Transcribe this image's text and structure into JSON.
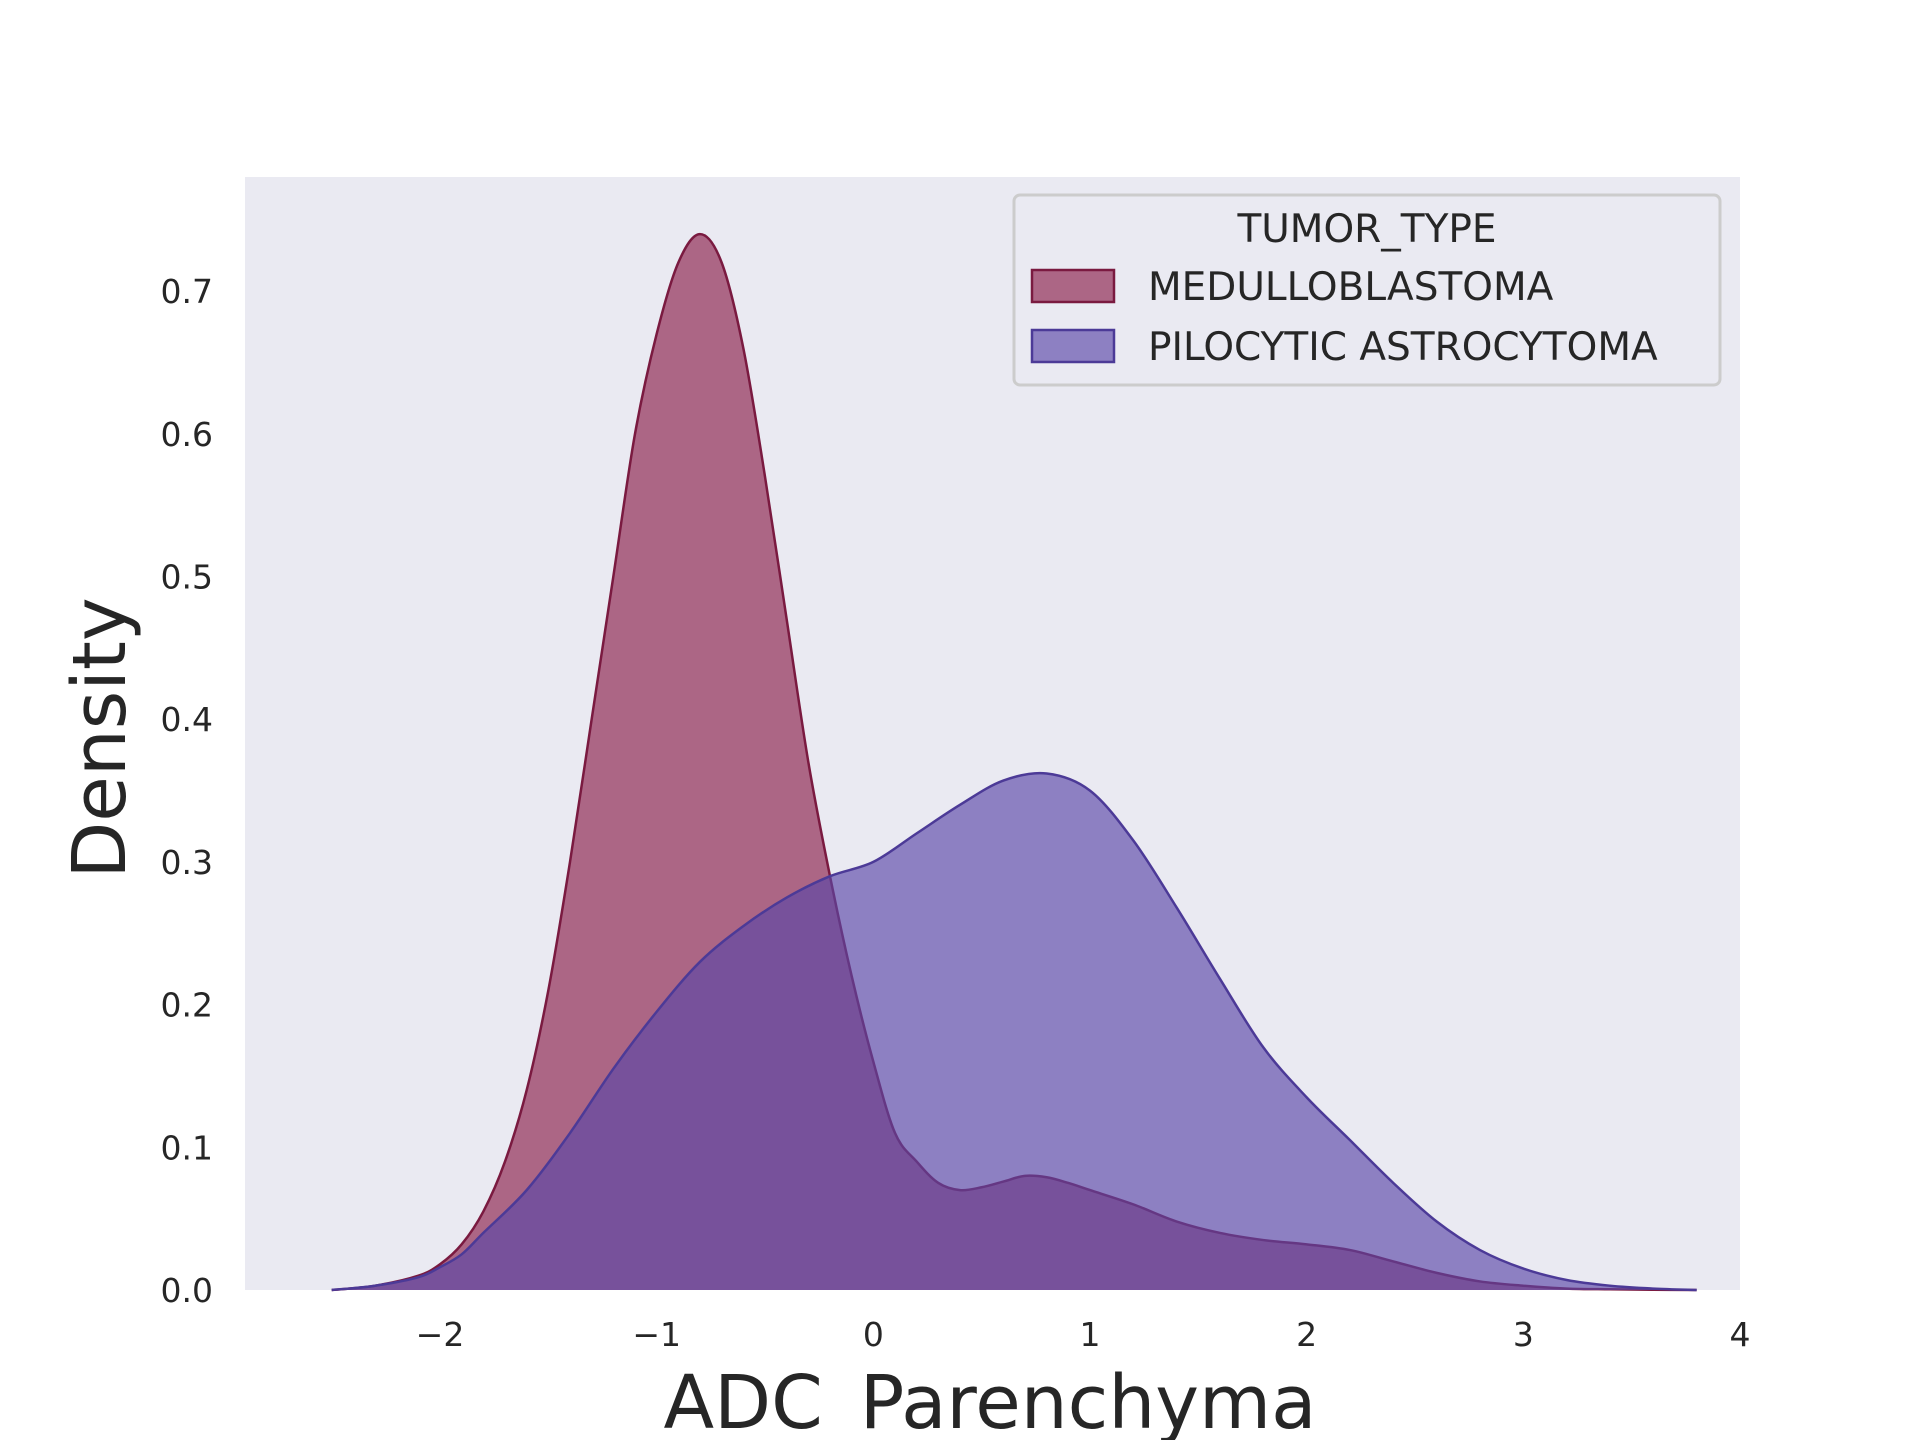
{
  "chart_data": {
    "type": "area",
    "title": "",
    "xlabel": "ADC_Parenchyma",
    "ylabel": "Density",
    "xlim": [
      -2.9,
      4.0
    ],
    "ylim": [
      0.0,
      0.78
    ],
    "x_ticks": [
      "−2",
      "−1",
      "0",
      "1",
      "2",
      "3",
      "4"
    ],
    "x_tick_values": [
      -2,
      -1,
      0,
      1,
      2,
      3,
      4
    ],
    "y_ticks": [
      "0.0",
      "0.1",
      "0.2",
      "0.3",
      "0.4",
      "0.5",
      "0.6",
      "0.7"
    ],
    "y_tick_values": [
      0.0,
      0.1,
      0.2,
      0.3,
      0.4,
      0.5,
      0.6,
      0.7
    ],
    "grid": false,
    "background": "#eaeaf2",
    "legend": {
      "title": "TUMOR_TYPE",
      "placement": "top-right"
    },
    "series": [
      {
        "name": "MEDULLOBLASTOMA",
        "fill": "#8b1e4a",
        "stroke": "#7a1a40",
        "opacity": 0.65,
        "x": [
          -2.5,
          -2.3,
          -2.1,
          -2.0,
          -1.9,
          -1.8,
          -1.7,
          -1.6,
          -1.5,
          -1.4,
          -1.3,
          -1.2,
          -1.1,
          -1.0,
          -0.9,
          -0.8,
          -0.7,
          -0.6,
          -0.5,
          -0.4,
          -0.3,
          -0.2,
          -0.1,
          0.0,
          0.1,
          0.2,
          0.3,
          0.4,
          0.5,
          0.6,
          0.7,
          0.8,
          0.9,
          1.0,
          1.2,
          1.4,
          1.6,
          1.8,
          2.0,
          2.2,
          2.4,
          2.6,
          2.8,
          3.0,
          3.2,
          3.4,
          3.6,
          3.8
        ],
        "y": [
          0.0,
          0.003,
          0.01,
          0.018,
          0.032,
          0.055,
          0.09,
          0.14,
          0.21,
          0.3,
          0.4,
          0.5,
          0.6,
          0.67,
          0.72,
          0.74,
          0.72,
          0.66,
          0.57,
          0.47,
          0.37,
          0.29,
          0.22,
          0.16,
          0.11,
          0.09,
          0.075,
          0.07,
          0.072,
          0.076,
          0.08,
          0.079,
          0.075,
          0.07,
          0.06,
          0.048,
          0.04,
          0.035,
          0.032,
          0.028,
          0.02,
          0.012,
          0.006,
          0.003,
          0.001,
          0.0005,
          0.0002,
          0.0
        ],
        "x_sampled_note_removed": true
      },
      {
        "name": "PILOCYTIC ASTROCYTOMA",
        "fill": "#5b46a8",
        "stroke": "#4c3a97",
        "opacity": 0.65,
        "x": [
          -2.5,
          -2.3,
          -2.1,
          -2.0,
          -1.9,
          -1.8,
          -1.6,
          -1.4,
          -1.2,
          -1.0,
          -0.8,
          -0.6,
          -0.4,
          -0.2,
          0.0,
          0.2,
          0.4,
          0.6,
          0.8,
          1.0,
          1.2,
          1.4,
          1.6,
          1.8,
          2.0,
          2.2,
          2.4,
          2.6,
          2.8,
          3.0,
          3.2,
          3.4,
          3.6,
          3.8
        ],
        "y": [
          0.0,
          0.003,
          0.009,
          0.016,
          0.025,
          0.04,
          0.07,
          0.11,
          0.155,
          0.195,
          0.23,
          0.255,
          0.275,
          0.29,
          0.3,
          0.32,
          0.34,
          0.357,
          0.362,
          0.35,
          0.315,
          0.268,
          0.218,
          0.17,
          0.135,
          0.105,
          0.075,
          0.048,
          0.028,
          0.015,
          0.007,
          0.003,
          0.001,
          0.0
        ]
      }
    ]
  }
}
